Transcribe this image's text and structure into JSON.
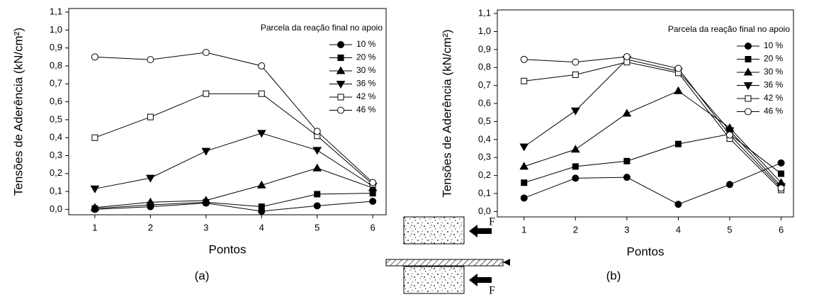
{
  "chart_data": [
    {
      "type": "line",
      "caption": "(a)",
      "x_label": "Pontos",
      "y_label": "Tensões de Aderência (kN/cm²)",
      "legend_title": "Parcela da reação final no apoio",
      "legend": "upper right",
      "x": [
        1,
        2,
        3,
        4,
        5,
        6
      ],
      "xlim": [
        0.53,
        6.24
      ],
      "xticks": [
        1,
        2,
        3,
        4,
        5,
        6
      ],
      "ylim": [
        -0.03,
        1.12
      ],
      "yticks": [
        {
          "value": 0,
          "label": "0,0"
        },
        {
          "value": 0.1,
          "label": "0,1"
        },
        {
          "value": 0.2,
          "label": "0,2"
        },
        {
          "value": 0.3,
          "label": "0,3"
        },
        {
          "value": 0.4,
          "label": "0,4"
        },
        {
          "value": 0.5,
          "label": "0,5"
        },
        {
          "value": 0.6,
          "label": "0,6"
        },
        {
          "value": 0.7,
          "label": "0,7"
        },
        {
          "value": 0.8,
          "label": "0,8"
        },
        {
          "value": 0.9,
          "label": "0,9"
        },
        {
          "value": 1.0,
          "label": "1,0"
        },
        {
          "value": 1.1,
          "label": "1,1"
        }
      ],
      "series": [
        {
          "name": "10 %",
          "color": "#000000",
          "marker": "circle",
          "filled": true,
          "values": [
            0.0,
            0.015,
            0.035,
            -0.01,
            0.02,
            0.045
          ]
        },
        {
          "name": "20 %",
          "color": "#000000",
          "marker": "square",
          "filled": true,
          "values": [
            0.005,
            0.025,
            0.04,
            0.015,
            0.085,
            0.09
          ]
        },
        {
          "name": "30 %",
          "color": "#000000",
          "marker": "triangle-up",
          "filled": true,
          "values": [
            0.01,
            0.04,
            0.05,
            0.135,
            0.23,
            0.12
          ]
        },
        {
          "name": "36 %",
          "color": "#000000",
          "marker": "triangle-down",
          "filled": true,
          "values": [
            0.115,
            0.175,
            0.325,
            0.425,
            0.33,
            0.13
          ]
        },
        {
          "name": "42 %",
          "color": "#000000",
          "marker": "square",
          "filled": false,
          "values": [
            0.4,
            0.515,
            0.645,
            0.645,
            0.41,
            0.14
          ]
        },
        {
          "name": "46 %",
          "color": "#000000",
          "marker": "circle",
          "filled": false,
          "values": [
            0.85,
            0.835,
            0.875,
            0.8,
            0.435,
            0.15
          ]
        }
      ]
    },
    {
      "type": "line",
      "caption": "(b)",
      "x_label": "Pontos",
      "y_label": "Tensões de Aderência (kN/cm²)",
      "legend_title": "Parcela da reação final no apoio",
      "legend": "upper right",
      "x": [
        1,
        2,
        3,
        4,
        5,
        6
      ],
      "xlim": [
        0.48,
        6.24
      ],
      "xticks": [
        1,
        2,
        3,
        4,
        5,
        6
      ],
      "ylim": [
        -0.03,
        1.12
      ],
      "yticks": [
        {
          "value": 0,
          "label": "0,0"
        },
        {
          "value": 0.1,
          "label": "0,1"
        },
        {
          "value": 0.2,
          "label": "0,2"
        },
        {
          "value": 0.3,
          "label": "0,3"
        },
        {
          "value": 0.4,
          "label": "0,4"
        },
        {
          "value": 0.5,
          "label": "0,5"
        },
        {
          "value": 0.6,
          "label": "0,6"
        },
        {
          "value": 0.7,
          "label": "0,7"
        },
        {
          "value": 0.8,
          "label": "0,8"
        },
        {
          "value": 0.9,
          "label": "0,9"
        },
        {
          "value": 1.0,
          "label": "1,0"
        },
        {
          "value": 1.1,
          "label": "1,1"
        }
      ],
      "series": [
        {
          "name": "10 %",
          "color": "#000000",
          "marker": "circle",
          "filled": true,
          "values": [
            0.075,
            0.185,
            0.19,
            0.04,
            0.15,
            0.27
          ]
        },
        {
          "name": "20 %",
          "color": "#000000",
          "marker": "square",
          "filled": true,
          "values": [
            0.16,
            0.25,
            0.28,
            0.375,
            0.43,
            0.21
          ]
        },
        {
          "name": "30 %",
          "color": "#000000",
          "marker": "triangle-up",
          "filled": true,
          "values": [
            0.25,
            0.345,
            0.545,
            0.67,
            0.465,
            0.16
          ]
        },
        {
          "name": "36 %",
          "color": "#000000",
          "marker": "triangle-down",
          "filled": true,
          "values": [
            0.36,
            0.56,
            0.845,
            0.78,
            0.45,
            0.14
          ]
        },
        {
          "name": "42 %",
          "color": "#000000",
          "marker": "square",
          "filled": false,
          "values": [
            0.725,
            0.76,
            0.83,
            0.77,
            0.405,
            0.12
          ]
        },
        {
          "name": "46 %",
          "color": "#000000",
          "marker": "circle",
          "filled": false,
          "values": [
            0.845,
            0.83,
            0.86,
            0.795,
            0.425,
            0.13
          ]
        }
      ]
    }
  ],
  "diagram": {
    "force_labels": [
      "F",
      "F"
    ]
  }
}
